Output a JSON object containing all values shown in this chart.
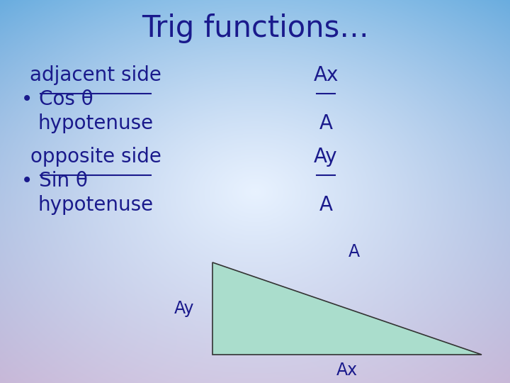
{
  "title": "Trig functions…",
  "title_fontsize": 30,
  "text_color": "#1a1a8c",
  "text_fontsize": 20,
  "bullet1_prefix": "• Cos θ",
  "bullet1_num": "adjacent side",
  "bullet1_den": "hypotenuse",
  "bullet1_frac_num": "Ax",
  "bullet1_frac_den": "A",
  "bullet2_prefix": "• Sin θ",
  "bullet2_num": "opposite side",
  "bullet2_den": "hypotenuse",
  "bullet2_frac_num": "Ay",
  "bullet2_frac_den": "A",
  "triangle_fill": "#aaddcc",
  "triangle_edge": "#333333",
  "label_A": "A",
  "label_Ay": "Ay",
  "label_Ax": "Ax",
  "fig_width": 7.2,
  "fig_height": 5.4,
  "bg_top_left": "#c8ddf5",
  "bg_top_right": "#c8ddf5",
  "bg_center": "#e8f2ff",
  "bg_bottom_left": "#d8cce8",
  "bg_bottom_right": "#d8cce8"
}
